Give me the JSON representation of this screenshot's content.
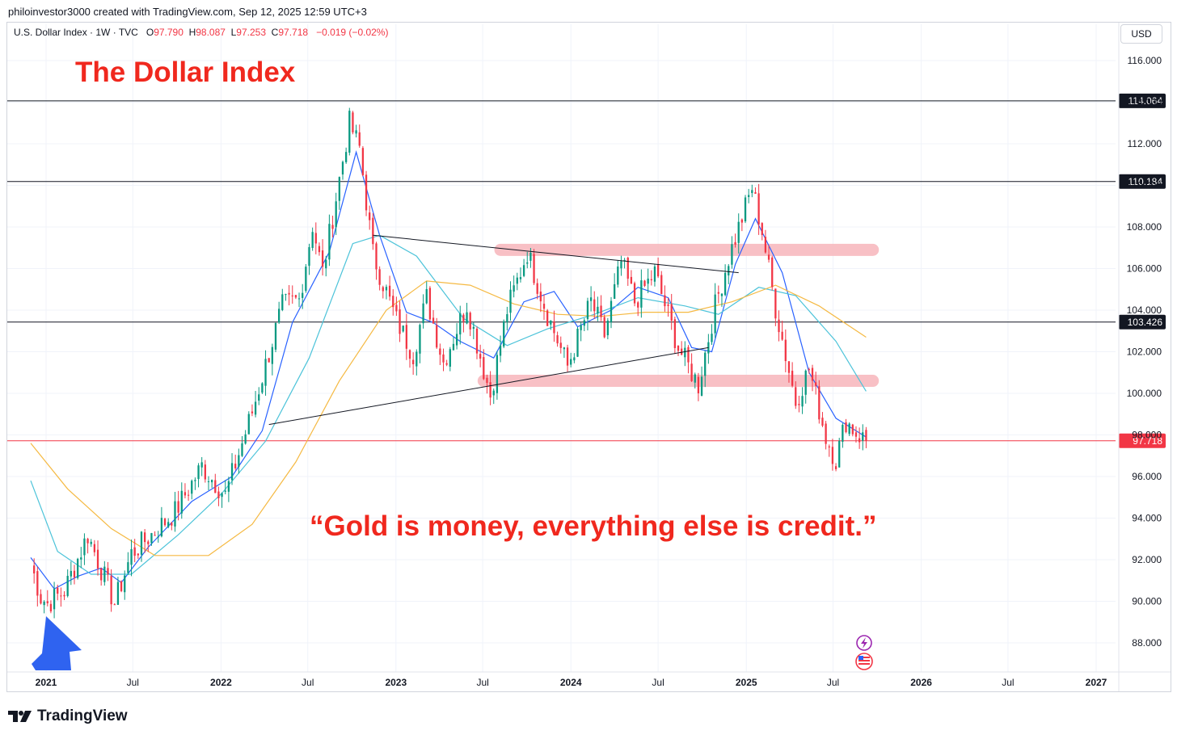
{
  "header": {
    "credit": "philoinvestor3000 created with TradingView.com, Sep 12, 2025 12:59 UTC+3",
    "symbol": "U.S. Dollar Index · 1W · TVC",
    "open_label": "O",
    "open": "97.790",
    "high_label": "H",
    "high": "98.087",
    "low_label": "L",
    "low": "97.253",
    "close_label": "C",
    "close": "97.718",
    "change": "−0.019 (−0.02%)",
    "currency_button": "USD"
  },
  "annotations": {
    "title": "The Dollar Index",
    "quote": "“Gold is money, everything else is credit.”"
  },
  "footer": {
    "brand": "TradingView"
  },
  "colors": {
    "up": "#089981",
    "down": "#f23645",
    "annotation_red": "#f0281e",
    "ma_fast": "#2962ff",
    "ma_mid": "#4cc3d9",
    "ma_slow": "#f5b942",
    "zone": "#f7b6bb",
    "arrow": "#2f63f0"
  },
  "chart_data": {
    "type": "candlestick",
    "interval": "1W",
    "ylim": [
      86.5,
      117.5
    ],
    "y_ticks": [
      "116.000",
      "114.000",
      "112.000",
      "110.000",
      "108.000",
      "106.000",
      "104.000",
      "102.000",
      "100.000",
      "98.000",
      "96.000",
      "94.000",
      "92.000",
      "90.000",
      "88.000"
    ],
    "x_ticks": [
      {
        "label": "2021",
        "date": "2021-01-01",
        "bold": true
      },
      {
        "label": "Jul",
        "date": "2021-07-01",
        "bold": false
      },
      {
        "label": "2022",
        "date": "2022-01-01",
        "bold": true
      },
      {
        "label": "Jul",
        "date": "2022-07-01",
        "bold": false
      },
      {
        "label": "2023",
        "date": "2023-01-01",
        "bold": true
      },
      {
        "label": "Jul",
        "date": "2023-07-01",
        "bold": false
      },
      {
        "label": "2024",
        "date": "2024-01-01",
        "bold": true
      },
      {
        "label": "Jul",
        "date": "2024-07-01",
        "bold": false
      },
      {
        "label": "2025",
        "date": "2025-01-01",
        "bold": true
      },
      {
        "label": "Jul",
        "date": "2025-07-01",
        "bold": false
      },
      {
        "label": "2026",
        "date": "2026-01-01",
        "bold": true
      },
      {
        "label": "Jul",
        "date": "2026-07-01",
        "bold": false
      },
      {
        "label": "2027",
        "date": "2027-01-01",
        "bold": true
      }
    ],
    "price_levels": [
      {
        "label": "114.064",
        "value": 114.064,
        "color": "#131722"
      },
      {
        "label": "110.184",
        "value": 110.184,
        "color": "#131722"
      },
      {
        "label": "103.426",
        "value": 103.426,
        "color": "#131722"
      },
      {
        "label": "97.718",
        "value": 97.718,
        "color": "#f23645"
      }
    ],
    "close_points": [
      [
        "2020-11-30",
        91.8
      ],
      [
        "2020-12-21",
        90.2
      ],
      [
        "2021-01-04",
        89.9
      ],
      [
        "2021-02-08",
        90.5
      ],
      [
        "2021-03-29",
        93.2
      ],
      [
        "2021-05-24",
        89.9
      ],
      [
        "2021-06-28",
        92.3
      ],
      [
        "2021-09-27",
        94.3
      ],
      [
        "2021-11-22",
        96.5
      ],
      [
        "2022-01-10",
        95.1
      ],
      [
        "2022-03-07",
        99.1
      ],
      [
        "2022-05-09",
        104.2
      ],
      [
        "2022-06-13",
        104.5
      ],
      [
        "2022-07-11",
        108.1
      ],
      [
        "2022-08-01",
        105.8
      ],
      [
        "2022-09-26",
        113.0
      ],
      [
        "2022-10-17",
        111.8
      ],
      [
        "2022-11-14",
        106.7
      ],
      [
        "2023-01-02",
        103.5
      ],
      [
        "2023-02-06",
        101.9
      ],
      [
        "2023-03-06",
        104.6
      ],
      [
        "2023-04-10",
        101.5
      ],
      [
        "2023-05-29",
        104.3
      ],
      [
        "2023-07-17",
        99.9
      ],
      [
        "2023-08-21",
        104.0
      ],
      [
        "2023-10-02",
        106.8
      ],
      [
        "2023-11-13",
        103.8
      ],
      [
        "2023-12-25",
        101.3
      ],
      [
        "2024-02-12",
        104.4
      ],
      [
        "2024-03-11",
        102.8
      ],
      [
        "2024-04-15",
        106.3
      ],
      [
        "2024-05-13",
        104.4
      ],
      [
        "2024-06-24",
        105.8
      ],
      [
        "2024-08-12",
        102.2
      ],
      [
        "2024-09-23",
        100.4
      ],
      [
        "2024-10-28",
        104.2
      ],
      [
        "2024-11-25",
        106.5
      ],
      [
        "2025-01-13",
        109.9
      ],
      [
        "2025-02-03",
        107.8
      ],
      [
        "2025-03-03",
        104.1
      ],
      [
        "2025-04-14",
        99.6
      ],
      [
        "2025-05-12",
        101.2
      ],
      [
        "2025-06-16",
        97.9
      ],
      [
        "2025-07-07",
        96.8
      ],
      [
        "2025-07-28",
        98.7
      ],
      [
        "2025-08-18",
        98.1
      ],
      [
        "2025-09-08",
        97.718
      ]
    ],
    "moving_averages": [
      {
        "color": "#2962ff",
        "points": [
          [
            "2020-11-30",
            92.1
          ],
          [
            "2021-01-18",
            90.6
          ],
          [
            "2021-03-08",
            91.2
          ],
          [
            "2021-04-26",
            91.6
          ],
          [
            "2021-06-07",
            90.9
          ],
          [
            "2021-08-02",
            92.6
          ],
          [
            "2021-11-01",
            94.8
          ],
          [
            "2022-01-24",
            96.0
          ],
          [
            "2022-03-28",
            98.2
          ],
          [
            "2022-05-30",
            103.4
          ],
          [
            "2022-08-15",
            106.8
          ],
          [
            "2022-10-10",
            111.6
          ],
          [
            "2022-11-28",
            107.6
          ],
          [
            "2023-01-23",
            103.9
          ],
          [
            "2023-03-20",
            103.4
          ],
          [
            "2023-05-15",
            102.5
          ],
          [
            "2023-07-24",
            101.7
          ],
          [
            "2023-09-25",
            104.4
          ],
          [
            "2023-11-27",
            104.9
          ],
          [
            "2024-01-15",
            103.2
          ],
          [
            "2024-03-25",
            104.0
          ],
          [
            "2024-05-20",
            105.1
          ],
          [
            "2024-07-22",
            104.6
          ],
          [
            "2024-09-09",
            102.2
          ],
          [
            "2024-10-21",
            102.0
          ],
          [
            "2024-12-09",
            106.2
          ],
          [
            "2025-01-20",
            108.4
          ],
          [
            "2025-03-17",
            105.8
          ],
          [
            "2025-05-12",
            101.0
          ],
          [
            "2025-07-07",
            98.8
          ],
          [
            "2025-09-08",
            97.9
          ]
        ]
      },
      {
        "color": "#4cc3d9",
        "points": [
          [
            "2020-11-30",
            95.8
          ],
          [
            "2021-01-25",
            92.4
          ],
          [
            "2021-04-05",
            91.3
          ],
          [
            "2021-06-28",
            91.3
          ],
          [
            "2021-10-04",
            93.2
          ],
          [
            "2022-01-03",
            95.2
          ],
          [
            "2022-04-04",
            97.7
          ],
          [
            "2022-07-04",
            101.7
          ],
          [
            "2022-10-03",
            107.2
          ],
          [
            "2022-11-28",
            107.6
          ],
          [
            "2023-02-13",
            106.6
          ],
          [
            "2023-05-22",
            103.6
          ],
          [
            "2023-08-21",
            102.3
          ],
          [
            "2023-11-13",
            103.1
          ],
          [
            "2024-02-19",
            103.8
          ],
          [
            "2024-05-20",
            104.6
          ],
          [
            "2024-08-26",
            104.2
          ],
          [
            "2024-11-04",
            103.8
          ],
          [
            "2025-01-27",
            105.1
          ],
          [
            "2025-04-14",
            104.7
          ],
          [
            "2025-07-07",
            102.5
          ],
          [
            "2025-09-08",
            100.1
          ]
        ]
      },
      {
        "color": "#f5b942",
        "points": [
          [
            "2020-11-30",
            97.6
          ],
          [
            "2021-02-15",
            95.4
          ],
          [
            "2021-05-17",
            93.5
          ],
          [
            "2021-08-16",
            92.2
          ],
          [
            "2021-12-06",
            92.2
          ],
          [
            "2022-03-07",
            93.7
          ],
          [
            "2022-06-06",
            96.7
          ],
          [
            "2022-09-05",
            100.6
          ],
          [
            "2022-12-12",
            104.0
          ],
          [
            "2023-03-06",
            105.4
          ],
          [
            "2023-06-05",
            105.2
          ],
          [
            "2023-09-04",
            104.3
          ],
          [
            "2023-12-04",
            103.8
          ],
          [
            "2024-03-04",
            103.7
          ],
          [
            "2024-06-03",
            103.9
          ],
          [
            "2024-09-02",
            103.9
          ],
          [
            "2024-12-02",
            104.4
          ],
          [
            "2025-03-03",
            105.2
          ],
          [
            "2025-06-02",
            104.2
          ],
          [
            "2025-09-08",
            102.7
          ]
        ]
      }
    ],
    "trendlines": [
      {
        "from": [
          "2022-11-14",
          107.6
        ],
        "to": [
          "2024-12-16",
          105.8
        ]
      },
      {
        "from": [
          "2022-04-11",
          98.5
        ],
        "to": [
          "2024-10-14",
          102.2
        ]
      }
    ],
    "highlight_zones": [
      {
        "from": "2023-08-07",
        "to": "2025-09-22",
        "value": 106.9
      },
      {
        "from": "2023-07-03",
        "to": "2025-09-22",
        "value": 100.6
      }
    ],
    "markers": [
      "up-arrow",
      "flash-icon",
      "us-flag-icon"
    ]
  }
}
